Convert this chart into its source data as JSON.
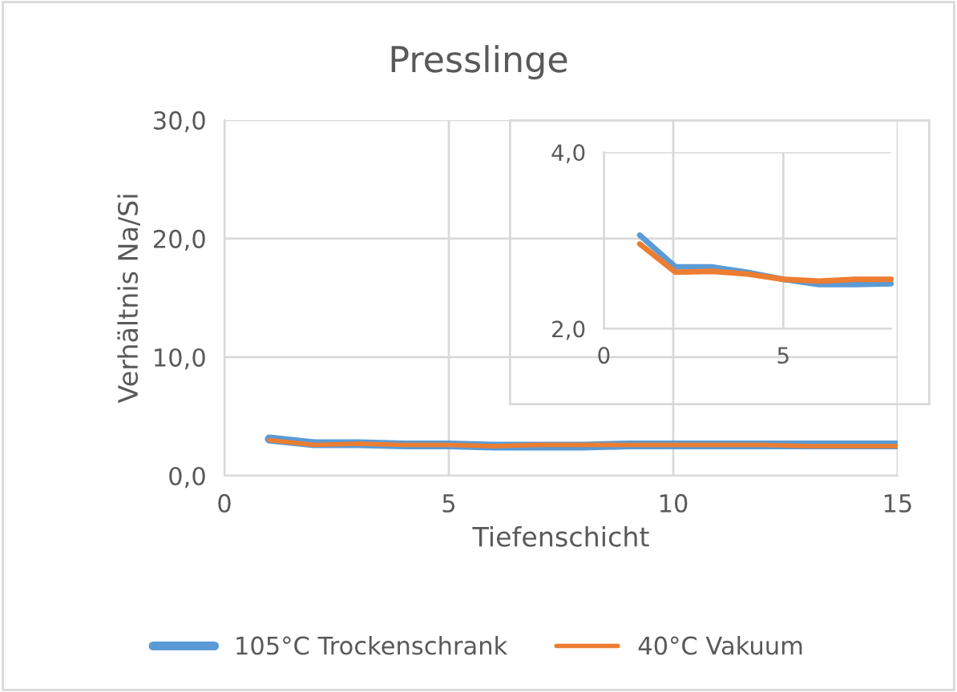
{
  "chart_data": [
    {
      "type": "line",
      "title": "Presslinge",
      "xlabel": "Tiefenschicht",
      "ylabel": "Verhältnis Na/Si",
      "x": [
        1,
        2,
        3,
        4,
        5,
        6,
        7,
        8,
        9,
        10,
        11,
        12,
        13,
        14,
        15
      ],
      "series": [
        {
          "name": "105°C Trockenschrank",
          "color": "#5b9bd5",
          "values": [
            3.1,
            2.7,
            2.7,
            2.6,
            2.6,
            2.5,
            2.5,
            2.5,
            2.6,
            2.6,
            2.6,
            2.6,
            2.6,
            2.6,
            2.6
          ]
        },
        {
          "name": "40°C Vakuum",
          "color": "#ed7d31",
          "values": [
            3.0,
            2.6,
            2.7,
            2.6,
            2.6,
            2.5,
            2.6,
            2.6,
            2.6,
            2.6,
            2.6,
            2.6,
            2.5,
            2.5,
            2.5
          ]
        }
      ],
      "xlim": [
        0,
        15
      ],
      "xticks": [
        0,
        5,
        10,
        15
      ],
      "ylim": [
        0,
        30
      ],
      "yticks": [
        {
          "value": 0,
          "label": "0,0"
        },
        {
          "value": 10,
          "label": "10,0"
        },
        {
          "value": 20,
          "label": "20,0"
        },
        {
          "value": 30,
          "label": "30,0"
        }
      ],
      "grid": true,
      "legend": "bottom",
      "marker": "none",
      "line_style": "solid"
    },
    {
      "type": "line",
      "x": [
        1,
        2,
        3,
        4,
        5,
        6,
        7,
        8
      ],
      "series": [
        {
          "color": "#5b9bd5",
          "values": [
            3.06,
            2.7,
            2.7,
            2.64,
            2.56,
            2.5,
            2.5,
            2.51
          ]
        },
        {
          "color": "#ed7d31",
          "values": [
            2.96,
            2.64,
            2.65,
            2.62,
            2.56,
            2.54,
            2.56,
            2.56
          ]
        }
      ],
      "xlim": [
        0,
        8
      ],
      "xticks": [
        0,
        5
      ],
      "ylim": [
        2,
        4
      ],
      "yticks": [
        {
          "value": 2,
          "label": "2,0"
        },
        {
          "value": 4,
          "label": "4,0"
        }
      ],
      "grid": true,
      "marker": "none",
      "line_style": "solid"
    }
  ]
}
